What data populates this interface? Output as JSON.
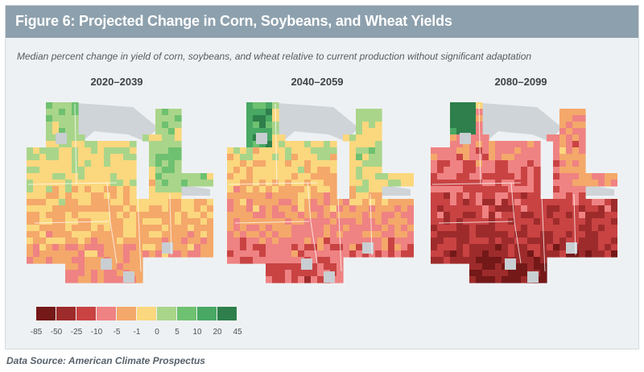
{
  "figure": {
    "title": "Figure 6: Projected Change in Corn, Soybeans, and Wheat Yields",
    "subtitle": "Median percent change in yield of corn, soybeans, and wheat relative to current production without significant adaptation"
  },
  "maps": [
    {
      "period": "2020–2039"
    },
    {
      "period": "2040–2059"
    },
    {
      "period": "2080–2099"
    }
  ],
  "legend": {
    "ticks": [
      "-85",
      "-50",
      "-25",
      "-10",
      "-5",
      "-1",
      "0",
      "5",
      "10",
      "20",
      "45"
    ],
    "colors": [
      "#741818",
      "#9e2b2b",
      "#c94343",
      "#ef8282",
      "#f4a86a",
      "#fbd77e",
      "#a9d58a",
      "#6ec170",
      "#48a864",
      "#2e7f4b"
    ]
  },
  "source": "Data Source: American Climate Prospectus"
}
